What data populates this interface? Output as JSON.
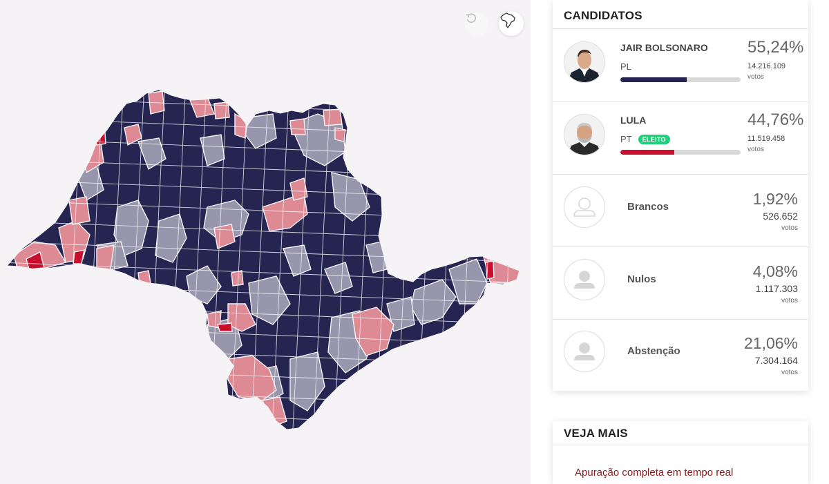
{
  "map": {
    "reset_icon": "undo-icon",
    "brazil_icon": "brazil-map-icon",
    "colors": {
      "bolsonaro_strong": "#262450",
      "bolsonaro_light": "#9896ac",
      "lula_light": "#de8a95",
      "lula_strong": "#c8102e",
      "background": "#f5f3f5"
    }
  },
  "candidates_panel": {
    "title": "CANDIDATOS",
    "candidates": [
      {
        "name": "JAIR BOLSONARO",
        "party": "PL",
        "percent": "55,24%",
        "votes": "14.216.109",
        "votes_label": "votos",
        "share": 0.5524,
        "color": "#262450",
        "elected": false
      },
      {
        "name": "LULA",
        "party": "PT",
        "badge": "ELEITO",
        "percent": "44,76%",
        "votes": "11.519.458",
        "votes_label": "votos",
        "share": 0.4476,
        "color": "#c8102e",
        "elected": true
      }
    ],
    "others": [
      {
        "name": "Brancos",
        "percent": "1,92%",
        "votes": "526.652",
        "votes_label": "votos"
      },
      {
        "name": "Nulos",
        "percent": "4,08%",
        "votes": "1.117.303",
        "votes_label": "votos"
      },
      {
        "name": "Abstenção",
        "percent": "21,06%",
        "votes": "7.304.164",
        "votes_label": "votos"
      }
    ]
  },
  "more_panel": {
    "title": "VEJA MAIS",
    "link": "Apuração completa em tempo real"
  }
}
